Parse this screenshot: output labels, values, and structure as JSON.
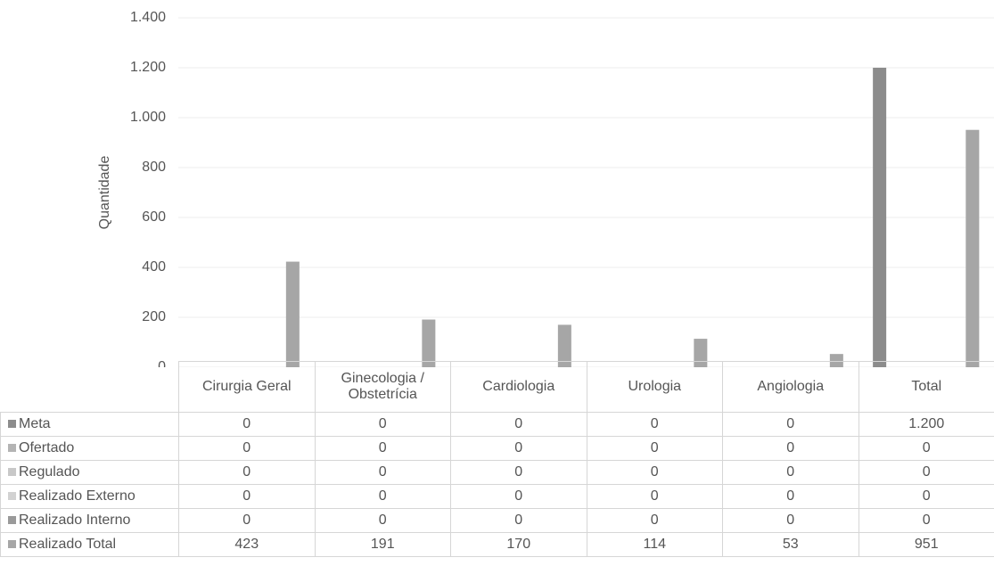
{
  "chart_data": {
    "type": "bar",
    "y_label": "Quantidade",
    "categories": [
      "Cirurgia Geral",
      "Ginecologia / Obstetrícia",
      "Cardiologia",
      "Urologia",
      "Angiologia",
      "Total"
    ],
    "series": [
      {
        "name": "Meta",
        "color": "#8c8c8c",
        "values": [
          0,
          0,
          0,
          0,
          0,
          1200
        ],
        "value_labels": [
          "0",
          "0",
          "0",
          "0",
          "0",
          "1.200"
        ]
      },
      {
        "name": "Ofertado",
        "color": "#b4b4b4",
        "values": [
          0,
          0,
          0,
          0,
          0,
          0
        ]
      },
      {
        "name": "Regulado",
        "color": "#c8c8c8",
        "values": [
          0,
          0,
          0,
          0,
          0,
          0
        ]
      },
      {
        "name": "Realizado Externo",
        "color": "#d2d2d2",
        "values": [
          0,
          0,
          0,
          0,
          0,
          0
        ]
      },
      {
        "name": "Realizado Interno",
        "color": "#9a9a9a",
        "values": [
          0,
          0,
          0,
          0,
          0,
          0
        ]
      },
      {
        "name": "Realizado Total",
        "color": "#a6a6a6",
        "values": [
          423,
          191,
          170,
          114,
          53,
          951
        ]
      }
    ],
    "ylim": [
      0,
      1400
    ],
    "yticks": [
      0,
      200,
      400,
      600,
      800,
      {
        "value": 1000,
        "label": "1.000"
      },
      {
        "value": 1200,
        "label": "1.200"
      },
      {
        "value": 1400,
        "label": "1.400"
      }
    ],
    "grid": true
  }
}
